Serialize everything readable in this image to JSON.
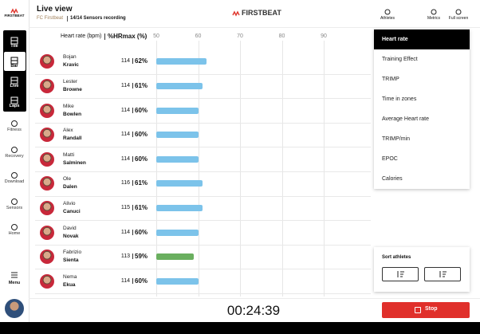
{
  "sidebar": {
    "logo": "FIRSTBEAT",
    "views": [
      "Tile",
      "Bar",
      "Live",
      "Laps"
    ],
    "selected_view": 1,
    "nav": [
      "Fitness",
      "Recovery",
      "Download",
      "Sensors",
      "Home"
    ],
    "menu": "Menu"
  },
  "header": {
    "title": "Live view",
    "team": "FC Firstbeat",
    "status": "14/14 Sensors recording",
    "logo": "FIRSTBEAT",
    "actions": [
      "Athletes",
      "Metrics",
      "Full screen"
    ]
  },
  "chart": {
    "hr_label": "Heart rate (bpm)",
    "pct_label": "%HRmax (%)",
    "xlim": [
      50,
      100
    ],
    "xticks": [
      50,
      60,
      70,
      80,
      90
    ],
    "athletes": [
      {
        "first": "Bojan",
        "last": "Kravic",
        "hr": 114,
        "pct": 62,
        "pct_label": "62%",
        "color": "#7cc3ea"
      },
      {
        "first": "Lester",
        "last": "Browne",
        "hr": 114,
        "pct": 61,
        "pct_label": "61%",
        "color": "#7cc3ea"
      },
      {
        "first": "Mike",
        "last": "Bowlen",
        "hr": 114,
        "pct": 60,
        "pct_label": "60%",
        "color": "#7cc3ea"
      },
      {
        "first": "Alex",
        "last": "Randall",
        "hr": 114,
        "pct": 60,
        "pct_label": "60%",
        "color": "#7cc3ea"
      },
      {
        "first": "Matti",
        "last": "Salminen",
        "hr": 114,
        "pct": 60,
        "pct_label": "60%",
        "color": "#7cc3ea"
      },
      {
        "first": "Ole",
        "last": "Dalen",
        "hr": 116,
        "pct": 61,
        "pct_label": "61%",
        "color": "#7cc3ea"
      },
      {
        "first": "Alivio",
        "last": "Canuci",
        "hr": 115,
        "pct": 61,
        "pct_label": "61%",
        "color": "#7cc3ea"
      },
      {
        "first": "David",
        "last": "Novak",
        "hr": 114,
        "pct": 60,
        "pct_label": "60%",
        "color": "#7cc3ea"
      },
      {
        "first": "Fabrizio",
        "last": "Sienta",
        "hr": 113,
        "pct": 59,
        "pct_label": "59%",
        "color": "#6aaf5f"
      },
      {
        "first": "Nema",
        "last": "Ekua",
        "hr": 114,
        "pct": 60,
        "pct_label": "60%",
        "color": "#7cc3ea"
      }
    ]
  },
  "metrics": {
    "items": [
      "Heart rate",
      "Training Effect",
      "TRIMP",
      "Time in zones",
      "Average Heart rate",
      "TRIMP/min",
      "EPOC",
      "Calories"
    ],
    "selected": 0
  },
  "sort": {
    "title": "Sort athletes"
  },
  "timer": "00:24:39",
  "stop": "Stop"
}
